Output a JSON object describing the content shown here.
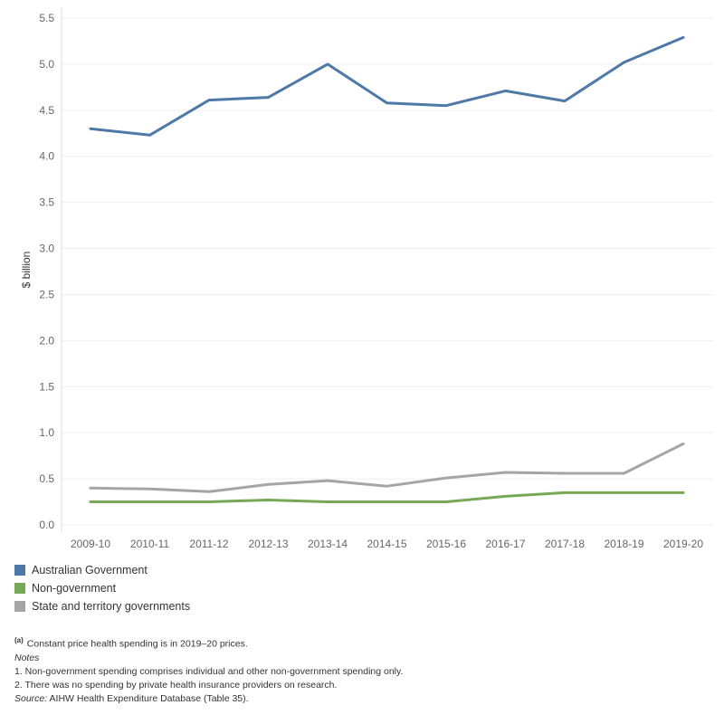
{
  "chart_data": {
    "type": "line",
    "categories": [
      "2009-10",
      "2010-11",
      "2011-12",
      "2012-13",
      "2013-14",
      "2014-15",
      "2015-16",
      "2016-17",
      "2017-18",
      "2018-19",
      "2019-20"
    ],
    "series": [
      {
        "name": "Australian Government",
        "color": "#4e79a7",
        "values": [
          4.3,
          4.23,
          4.61,
          4.64,
          5.0,
          4.58,
          4.55,
          4.71,
          4.6,
          5.02,
          5.29
        ]
      },
      {
        "name": "Non-government",
        "color": "#76a855",
        "values": [
          0.25,
          0.25,
          0.25,
          0.27,
          0.25,
          0.25,
          0.25,
          0.31,
          0.35,
          0.35,
          0.35
        ]
      },
      {
        "name": "State and territory governments",
        "color": "#a5a5a5",
        "values": [
          0.4,
          0.39,
          0.36,
          0.44,
          0.48,
          0.42,
          0.51,
          0.57,
          0.56,
          0.56,
          0.88
        ]
      }
    ],
    "ylabel": "$ billion",
    "xlabel": "",
    "yticks": [
      "0.0",
      "0.5",
      "1.0",
      "1.5",
      "2.0",
      "2.5",
      "3.0",
      "3.5",
      "4.0",
      "4.5",
      "5.0",
      "5.5"
    ],
    "ylim": [
      0,
      5.5
    ],
    "grid": true,
    "legend_position": "bottom-left"
  },
  "notes": {
    "footnote_marker": "(a)",
    "footnote_text": "Constant price health spending is in 2019–20 prices.",
    "notes_heading": "Notes",
    "note_1": "1. Non-government spending comprises individual and other non-government spending only.",
    "note_2": "2. There was no spending by private health insurance providers on research.",
    "source_label": "Source:",
    "source_text": " AIHW Health Expenditure Database (Table 35)."
  }
}
